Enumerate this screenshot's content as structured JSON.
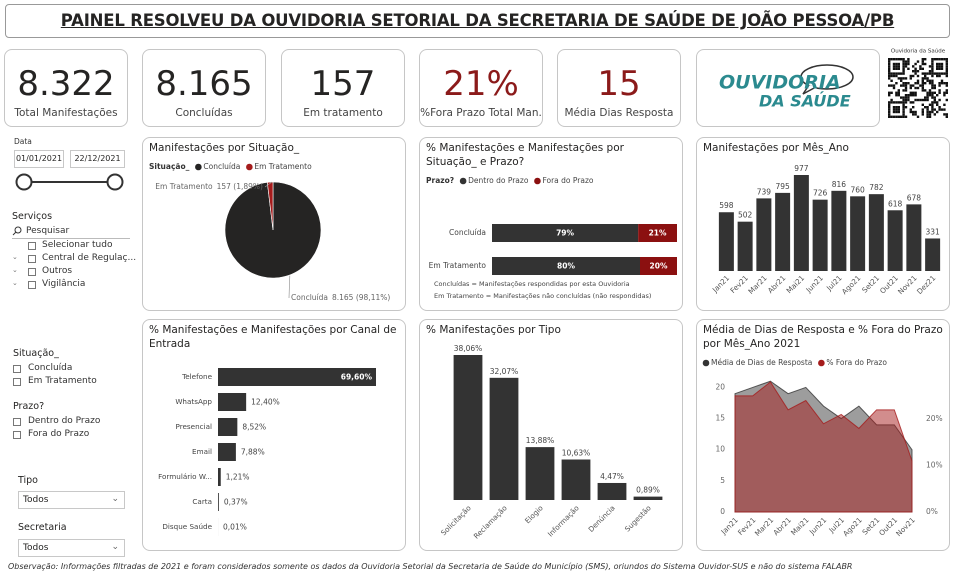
{
  "header": {
    "title": "PAINEL RESOLVEU DA OUVIDORIA SETORIAL DA SECRETARIA DE SAÚDE DE JOÃO PESSOA/PB"
  },
  "kpis": [
    {
      "value": "8.322",
      "label": "Total Manifestações",
      "color": "#252423"
    },
    {
      "value": "8.165",
      "label": "Concluídas",
      "color": "#252423"
    },
    {
      "value": "157",
      "label": "Em tratamento",
      "color": "#252423"
    },
    {
      "value": "21%",
      "label": "%Fora Prazo Total Man.",
      "color": "#8b1a1a"
    },
    {
      "value": "15",
      "label": "Média Dias Resposta",
      "color": "#8b1a1a"
    }
  ],
  "logo": {
    "line1": "OUVIDORIA",
    "line2": "DA SAÚDE",
    "qr_caption": "Ouvidoria da Saúde"
  },
  "filters": {
    "date": {
      "label": "Data",
      "start": "01/01/2021",
      "end": "22/12/2021"
    },
    "services": {
      "label": "Serviços",
      "search": "Pesquisar",
      "items": [
        "Selecionar tudo",
        "Central de Regulaç...",
        "Outros",
        "Vigilância"
      ]
    },
    "situation": {
      "label": "Situação_",
      "items": [
        "Concluída",
        "Em Tratamento"
      ]
    },
    "deadline": {
      "label": "Prazo?",
      "items": [
        "Dentro do Prazo",
        "Fora do Prazo"
      ]
    },
    "type": {
      "label": "Tipo",
      "selected": "Todos"
    },
    "department": {
      "label": "Secretaria",
      "selected": "Todos"
    }
  },
  "chart_data": [
    {
      "type": "pie",
      "title": "Manifestações por Situação_",
      "legend_title": "Situação_",
      "categories": [
        "Concluída",
        "Em Tratamento"
      ],
      "values": [
        8165,
        157
      ],
      "value_labels": [
        "8.165 (98,11%)",
        "157 (1,89%)"
      ],
      "colors": [
        "#252423",
        "#a51c1c"
      ]
    },
    {
      "type": "bar",
      "orientation": "horizontal",
      "stacked": true,
      "title": "% Manifestações e Manifestações por Situação_ e Prazo?",
      "legend_title": "Prazo?",
      "categories": [
        "Concluída",
        "Em Tratamento"
      ],
      "xlim": [
        0,
        100
      ],
      "series": [
        {
          "name": "Dentro do Prazo",
          "color": "#333333",
          "values": [
            79,
            80
          ],
          "value_labels": [
            "79%",
            "80%"
          ]
        },
        {
          "name": "Fora do Prazo",
          "color": "#8b1010",
          "values": [
            21,
            20
          ],
          "value_labels": [
            "21%",
            "20%"
          ]
        }
      ],
      "notes": [
        "Concluídas = Manifestações respondidas por esta Ouvidoria",
        "Em Tratamento = Manifestações não concluídas (não respondidas)"
      ]
    },
    {
      "type": "bar",
      "title": "Manifestações por Mês_Ano",
      "color": "#333333",
      "categories": [
        "Jan21",
        "Fev21",
        "Mar21",
        "Abr21",
        "Mai21",
        "Jun21",
        "Jul21",
        "Ago21",
        "Set21",
        "Out21",
        "Nov21",
        "Dez21"
      ],
      "values": [
        598,
        502,
        739,
        795,
        977,
        726,
        816,
        760,
        782,
        618,
        678,
        331
      ]
    },
    {
      "type": "bar",
      "orientation": "horizontal",
      "title": "% Manifestações e Manifestações por Canal de Entrada",
      "color": "#333333",
      "categories": [
        "Telefone",
        "WhatsApp",
        "Presencial",
        "Email",
        "Formulário W...",
        "Carta",
        "Disque Saúde"
      ],
      "values": [
        69.6,
        12.4,
        8.52,
        7.88,
        1.21,
        0.37,
        0.01
      ],
      "value_labels": [
        "69,60%",
        "12,40%",
        "8,52%",
        "7,88%",
        "1,21%",
        "0,37%",
        "0,01%"
      ]
    },
    {
      "type": "bar",
      "title": "% Manifestações por Tipo",
      "color": "#333333",
      "categories": [
        "Solicitação",
        "Reclamação",
        "Elogio",
        "Informação",
        "Denúncia",
        "Sugestão"
      ],
      "values": [
        38.06,
        32.07,
        13.88,
        10.63,
        4.47,
        0.89
      ],
      "value_labels": [
        "38,06%",
        "32,07%",
        "13,88%",
        "10,63%",
        "4,47%",
        "0,89%"
      ]
    },
    {
      "type": "area",
      "title": "Média de Dias de Resposta e % Fora do Prazo por Mês_Ano 2021",
      "categories": [
        "Jan21",
        "Fev21",
        "Mar21",
        "Abr21",
        "Mai21",
        "Jun21",
        "Jul21",
        "Ago21",
        "Set21",
        "Out21",
        "Nov21"
      ],
      "series": [
        {
          "name": "Média de Dias de Resposta",
          "color": "#333333",
          "values": [
            19,
            20,
            21,
            19,
            20,
            17,
            15,
            17,
            14,
            14,
            10
          ]
        },
        {
          "name": "% Fora do Prazo",
          "color": "#a51c1c",
          "axis": "y2",
          "values": [
            25,
            25,
            28,
            22,
            24,
            19,
            21,
            18,
            22,
            22,
            11
          ]
        }
      ],
      "ylim": [
        0,
        22
      ],
      "yticks": [
        0,
        5,
        10,
        15,
        20
      ],
      "y2lim": [
        0,
        29.5
      ],
      "y2ticks": [
        {
          "value": 0,
          "label": "0%"
        },
        {
          "value": 10,
          "label": "10%"
        },
        {
          "value": 20,
          "label": "20%"
        }
      ]
    }
  ],
  "footer": {
    "note": "Observação: Informações filtradas de 2021 e foram considerados somente os dados da Ouvidoria Setorial da Secretaria de Saúde do Município (SMS), oriundos do Sistema Ouvidor-SUS e não do sistema FALABR"
  }
}
